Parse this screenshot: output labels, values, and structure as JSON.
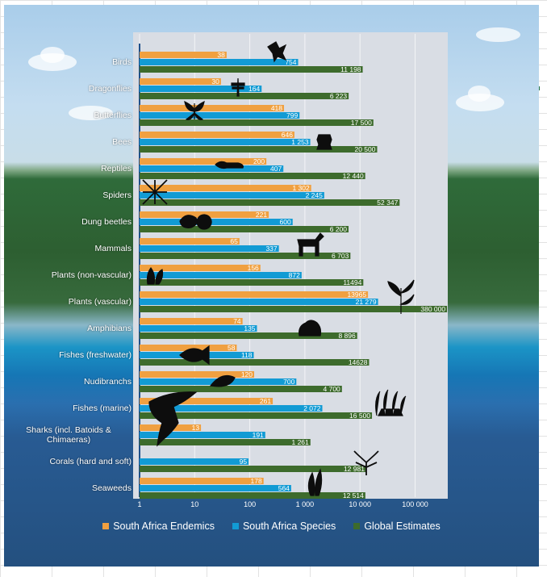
{
  "chart_data": {
    "type": "bar",
    "orientation": "horizontal",
    "x_scale": "log",
    "xlim": [
      1,
      1000000
    ],
    "x_ticks": [
      1,
      10,
      100,
      1000,
      10000,
      100000
    ],
    "x_tick_labels": [
      "1",
      "10",
      "100",
      "1 000",
      "10 000",
      "100 000"
    ],
    "categories": [
      "Birds",
      "Dragonflies",
      "Butterflies",
      "Bees",
      "Reptiles",
      "Spiders",
      "Dung beetles",
      "Mammals",
      "Plants (non-vascular)",
      "Plants (vascular)",
      "Amphibians",
      "Fishes (freshwater)",
      "Nudibranchs",
      "Fishes (marine)",
      "Sharks (incl. Batoids & Chimaeras)",
      "Corals (hard and soft)",
      "Seaweeds"
    ],
    "series": [
      {
        "name": "South Africa Endemics",
        "color": "#f0a040",
        "values": [
          38,
          30,
          418,
          646,
          200,
          1302,
          221,
          65,
          156,
          13965,
          74,
          58,
          120,
          261,
          13,
          null,
          178
        ],
        "labels": [
          "38",
          "30",
          "418",
          "646",
          "200",
          "1 302",
          "221",
          "65",
          "156",
          "13965",
          "74",
          "58",
          "120",
          "261",
          "13",
          "",
          "178"
        ]
      },
      {
        "name": "South Africa Species",
        "color": "#129bd4",
        "values": [
          754,
          164,
          799,
          1253,
          407,
          2245,
          600,
          337,
          872,
          21279,
          135,
          118,
          700,
          2072,
          191,
          95,
          564
        ],
        "labels": [
          "754",
          "164",
          "799",
          "1 253",
          "407",
          "2 245",
          "600",
          "337",
          "872",
          "21 279",
          "135",
          "118",
          "700",
          "2 072",
          "191",
          "95",
          "564"
        ]
      },
      {
        "name": "Global Estimates",
        "color": "#3d6b2c",
        "values": [
          11198,
          6223,
          17500,
          20500,
          12440,
          52347,
          6200,
          6703,
          11494,
          380000,
          8896,
          14628,
          4700,
          16500,
          1261,
          12981,
          12514
        ],
        "labels": [
          "11 198",
          "6 223",
          "17 500",
          "20 500",
          "12 440",
          "52 347",
          "6 200",
          "6 703",
          "11494",
          "380 000",
          "8 896",
          "14628",
          "4 700",
          "16 500",
          "1 261",
          "12 981",
          "12 514"
        ]
      }
    ],
    "legend_position": "bottom",
    "grid": true
  },
  "icons": [
    {
      "category": "Birds",
      "icon": "eagle-icon"
    },
    {
      "category": "Dragonflies",
      "icon": "dragonfly-icon"
    },
    {
      "category": "Butterflies",
      "icon": "butterfly-icon"
    },
    {
      "category": "Bees",
      "icon": "beehive-icon"
    },
    {
      "category": "Reptiles",
      "icon": "lizard-icon"
    },
    {
      "category": "Spiders",
      "icon": "spider-web-icon"
    },
    {
      "category": "Dung beetles",
      "icon": "dung-beetle-icon"
    },
    {
      "category": "Mammals",
      "icon": "zebra-icon"
    },
    {
      "category": "Plants (non-vascular)",
      "icon": "moss-icon"
    },
    {
      "category": "Plants (vascular)",
      "icon": "plant-icon"
    },
    {
      "category": "Amphibians",
      "icon": "frog-icon"
    },
    {
      "category": "Fishes (freshwater)",
      "icon": "clownfish-icon"
    },
    {
      "category": "Nudibranchs",
      "icon": "nudibranch-icon"
    },
    {
      "category": "Fishes (marine)",
      "icon": "anemone-icon"
    },
    {
      "category": "Sharks (incl. Batoids & Chimaeras)",
      "icon": "shark-icon"
    },
    {
      "category": "Corals (hard and soft)",
      "icon": "coral-icon"
    },
    {
      "category": "Seaweeds",
      "icon": "seaweed-icon"
    }
  ]
}
